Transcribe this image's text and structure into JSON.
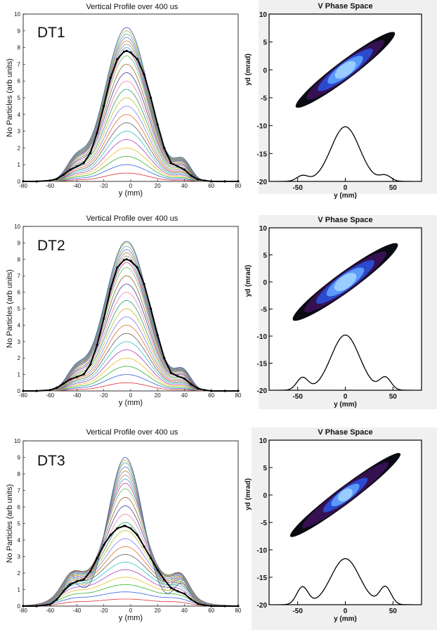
{
  "chart_data": [
    {
      "type": "line",
      "title": "Vertical Profile over 400 us",
      "panel_label": "DT1",
      "xlabel": "y (mm)",
      "ylabel": "No Particles (arb units)",
      "xlim": [
        -80,
        80
      ],
      "ylim": [
        0,
        10
      ],
      "xticks": [
        -80,
        -60,
        -40,
        -20,
        0,
        20,
        40,
        60,
        80
      ],
      "yticks": [
        0,
        1,
        2,
        3,
        4,
        5,
        6,
        7,
        8,
        9,
        10
      ],
      "grid": false,
      "center": -3,
      "series": [
        {
          "values": [
            0.5,
            1.0,
            1.5,
            2.0,
            2.5,
            3.0,
            3.5,
            4.0,
            4.5,
            5.0,
            5.5,
            6.0,
            6.5,
            7.0,
            7.5,
            7.8,
            8.0,
            8.2,
            8.4,
            8.6,
            8.8,
            9.0,
            9.2
          ]
        },
        {
          "role": "highlight",
          "x": [
            -80,
            -70,
            -60,
            -55,
            -50,
            -45,
            -40,
            -35,
            -30,
            -25,
            -20,
            -15,
            -10,
            -5,
            -3,
            0,
            5,
            10,
            15,
            20,
            25,
            30,
            35,
            40,
            45,
            50,
            55,
            60,
            70,
            80
          ],
          "y": [
            0,
            0,
            0.05,
            0.15,
            0.4,
            0.7,
            0.9,
            1.1,
            1.7,
            2.9,
            4.5,
            6.2,
            7.3,
            7.75,
            7.8,
            7.7,
            7.3,
            6.4,
            5.0,
            3.4,
            2.0,
            1.1,
            0.9,
            0.7,
            0.35,
            0.12,
            0.05,
            0,
            0,
            0
          ]
        }
      ]
    },
    {
      "type": "line",
      "title": "Vertical Profile over 400 us",
      "panel_label": "DT2",
      "xlabel": "y (mm)",
      "ylabel": "No Particles (arb units)",
      "xlim": [
        -80,
        80
      ],
      "ylim": [
        0,
        10
      ],
      "xticks": [
        -80,
        -60,
        -40,
        -20,
        0,
        20,
        40,
        60,
        80
      ],
      "yticks": [
        0,
        1,
        2,
        3,
        4,
        5,
        6,
        7,
        8,
        9,
        10
      ],
      "grid": false,
      "center": -3,
      "series": [
        {
          "values": [
            0.5,
            1.0,
            1.5,
            2.0,
            2.5,
            3.0,
            3.5,
            4.0,
            4.5,
            5.0,
            5.5,
            6.0,
            6.5,
            7.0,
            7.5,
            7.8,
            8.0,
            8.2,
            8.4,
            8.6,
            8.8,
            9.0,
            9.1
          ]
        },
        {
          "role": "highlight",
          "x": [
            -80,
            -70,
            -60,
            -55,
            -50,
            -45,
            -40,
            -35,
            -30,
            -25,
            -20,
            -15,
            -10,
            -5,
            -3,
            0,
            5,
            10,
            15,
            20,
            25,
            30,
            35,
            40,
            45,
            50,
            55,
            60,
            70,
            80
          ],
          "y": [
            0,
            0,
            0.05,
            0.2,
            0.45,
            0.7,
            0.85,
            1.0,
            1.6,
            2.8,
            4.4,
            6.2,
            7.5,
            7.95,
            8.0,
            7.9,
            7.5,
            6.5,
            5.0,
            3.4,
            2.0,
            1.1,
            0.9,
            0.75,
            0.4,
            0.15,
            0.05,
            0,
            0,
            0
          ]
        }
      ]
    },
    {
      "type": "line",
      "title": "Vertical Profile over 400 us",
      "panel_label": "DT3",
      "xlabel": "y (mm)",
      "ylabel": "No Particles (arb units)",
      "xlim": [
        -80,
        80
      ],
      "ylim": [
        0,
        10
      ],
      "xticks": [
        -80,
        -60,
        -40,
        -20,
        0,
        20,
        40,
        60,
        80
      ],
      "yticks": [
        0,
        1,
        2,
        3,
        4,
        5,
        6,
        7,
        8,
        9,
        10
      ],
      "grid": false,
      "center": -4,
      "series": [
        {
          "values": [
            0.5,
            1.0,
            1.5,
            2.0,
            2.5,
            3.0,
            3.5,
            4.0,
            4.5,
            5.0,
            5.5,
            6.0,
            6.5,
            7.0,
            7.5,
            7.8,
            8.0,
            8.2,
            8.4,
            8.6,
            8.8,
            8.9,
            9.0
          ]
        },
        {
          "role": "highlight",
          "x": [
            -80,
            -70,
            -60,
            -55,
            -50,
            -45,
            -40,
            -35,
            -30,
            -25,
            -20,
            -15,
            -10,
            -5,
            -4,
            0,
            5,
            10,
            15,
            20,
            25,
            30,
            35,
            40,
            45,
            50,
            55,
            60,
            70,
            80
          ],
          "y": [
            0,
            0,
            0.1,
            0.4,
            0.9,
            1.3,
            1.5,
            1.6,
            2.1,
            2.9,
            3.7,
            4.3,
            4.7,
            4.85,
            4.85,
            4.7,
            4.3,
            3.6,
            2.9,
            2.2,
            1.6,
            1.1,
            0.9,
            0.75,
            0.4,
            0.15,
            0.05,
            0,
            0,
            0
          ]
        }
      ]
    },
    {
      "type": "heatmap",
      "title": "V Phase Space",
      "xlabel": "y (mm)",
      "ylabel": "yd (mrad)",
      "xlim": [
        -80,
        80
      ],
      "ylim": [
        -20,
        10
      ],
      "xticks": [
        -50,
        0,
        50
      ],
      "yticks": [
        -20,
        -15,
        -10,
        -5,
        0,
        5,
        10
      ],
      "ellipse": {
        "center": [
          0,
          0
        ],
        "angle_deg": 37,
        "rx": 88,
        "ry": 13
      },
      "core": [
        0.55,
        0.35,
        0.2
      ],
      "profile": {
        "peak": -10.2,
        "base": -20,
        "side": -19
      }
    },
    {
      "type": "heatmap",
      "title": "V Phase Space",
      "xlabel": "y (mm)",
      "ylabel": "yd (mrad)",
      "xlim": [
        -80,
        80
      ],
      "ylim": [
        -20,
        10
      ],
      "xticks": [
        -50,
        0,
        50
      ],
      "yticks": [
        -20,
        -15,
        -10,
        -5,
        0,
        5,
        10
      ],
      "ellipse": {
        "center": [
          0,
          0
        ],
        "angle_deg": 36,
        "rx": 92,
        "ry": 14
      },
      "core": [
        0.55,
        0.35,
        0.2
      ],
      "profile": {
        "peak": -9.8,
        "base": -20,
        "side": -17.7
      }
    },
    {
      "type": "heatmap",
      "title": "V Phase Space",
      "xlabel": "y (mm)",
      "ylabel": "yd (mrad)",
      "xlim": [
        -80,
        80
      ],
      "ylim": [
        -20,
        10
      ],
      "xticks": [
        -50,
        0,
        50
      ],
      "yticks": [
        -20,
        -15,
        -10,
        -5,
        0,
        5,
        10
      ],
      "ellipse": {
        "center": [
          0,
          0
        ],
        "angle_deg": 37,
        "rx": 98,
        "ry": 12
      },
      "core": [
        0.4,
        0.25,
        0.12
      ],
      "profile": {
        "peak": -11.6,
        "base": -20,
        "side": -16.8
      }
    }
  ],
  "colors": {
    "curves": [
      "#e03030",
      "#3060e0",
      "#30b030",
      "#e8c020",
      "#b040c0",
      "#30c0c0",
      "#606060",
      "#e07020",
      "#8080ff",
      "#c0c030",
      "#20a070",
      "#f080a0",
      "#4040a0",
      "#a06030",
      "#60c060",
      "#d04080",
      "#40a0e0",
      "#909090",
      "#c08040",
      "#7070c0",
      "#50b0a0",
      "#b0b040",
      "#3050b0"
    ],
    "highlight": "#000000",
    "phase_outer": "#0a0a12",
    "phase_mid": "#3a1258",
    "phase_inner": "#2a4fd8",
    "phase_core": "#5fa0ff"
  }
}
